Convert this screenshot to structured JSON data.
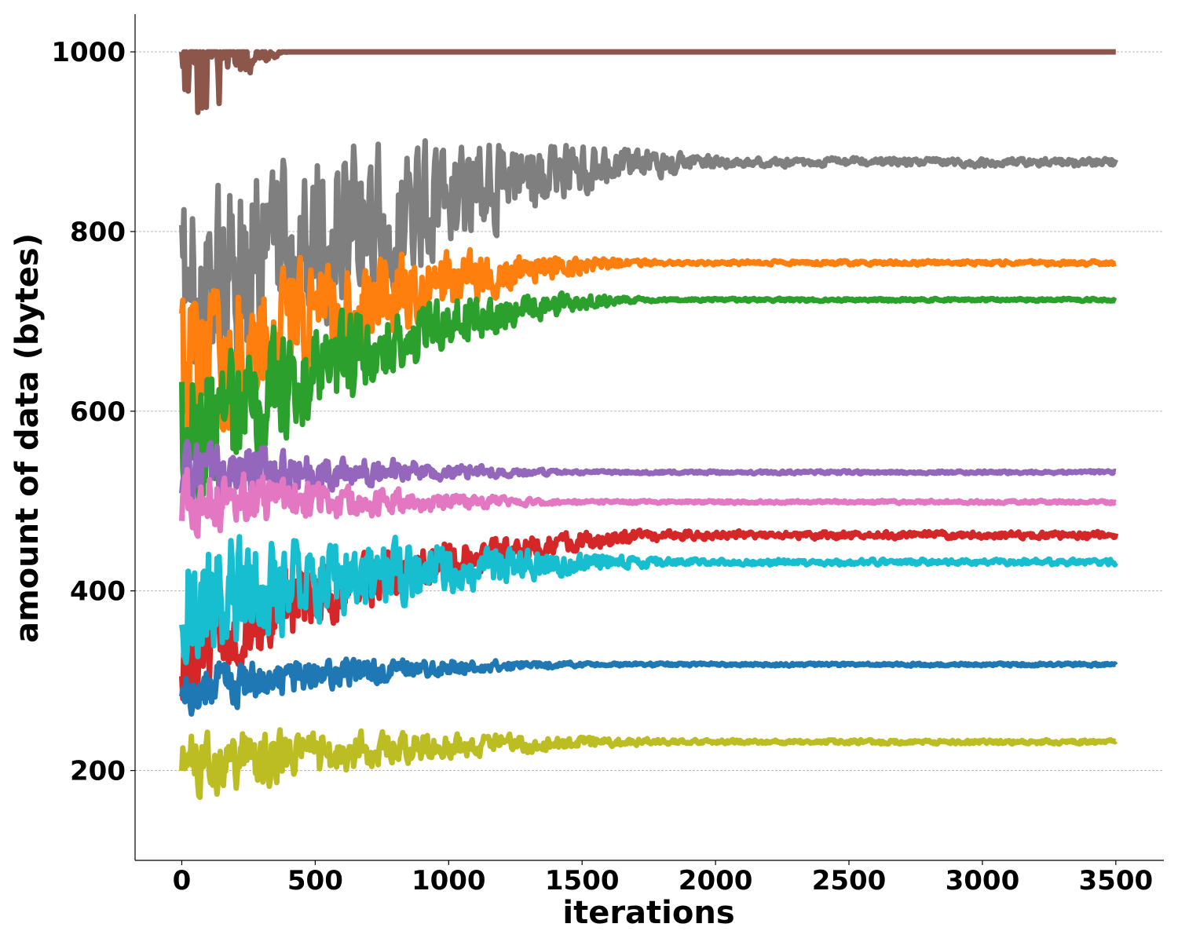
{
  "chart_data": {
    "type": "line",
    "title": "",
    "xlabel": "iterations",
    "ylabel": "amount of data (bytes)",
    "xlim": [
      -175,
      3680
    ],
    "ylim": [
      100,
      1042
    ],
    "xticks": [
      0,
      500,
      1000,
      1500,
      2000,
      2500,
      3000,
      3500
    ],
    "yticks": [
      200,
      400,
      600,
      800,
      1000
    ],
    "grid": "horizontal dashed",
    "legend": "none",
    "x_range": [
      0,
      3500
    ],
    "series": [
      {
        "color": "#8c564b",
        "start": 1000,
        "final": 1000,
        "amp0": 140,
        "settle": 400,
        "band": 0
      },
      {
        "color": "#7f7f7f",
        "start": 720,
        "final": 877,
        "amp0": 180,
        "settle": 2100,
        "band": 6
      },
      {
        "color": "#ff7f0e",
        "start": 640,
        "final": 765,
        "amp0": 120,
        "settle": 1800,
        "band": 3
      },
      {
        "color": "#2ca02c",
        "start": 560,
        "final": 724,
        "amp0": 110,
        "settle": 1800,
        "band": 2
      },
      {
        "color": "#9467bd",
        "start": 535,
        "final": 532,
        "amp0": 45,
        "settle": 1500,
        "band": 2
      },
      {
        "color": "#e377c2",
        "start": 500,
        "final": 499,
        "amp0": 45,
        "settle": 1500,
        "band": 2
      },
      {
        "color": "#d62728",
        "start": 330,
        "final": 462,
        "amp0": 60,
        "settle": 2000,
        "band": 5
      },
      {
        "color": "#17becf",
        "start": 390,
        "final": 432,
        "amp0": 90,
        "settle": 1900,
        "band": 4
      },
      {
        "color": "#1f77b4",
        "start": 290,
        "final": 318,
        "amp0": 35,
        "settle": 1600,
        "band": 2
      },
      {
        "color": "#bcbd22",
        "start": 205,
        "final": 232,
        "amp0": 45,
        "settle": 1900,
        "band": 3
      }
    ]
  }
}
